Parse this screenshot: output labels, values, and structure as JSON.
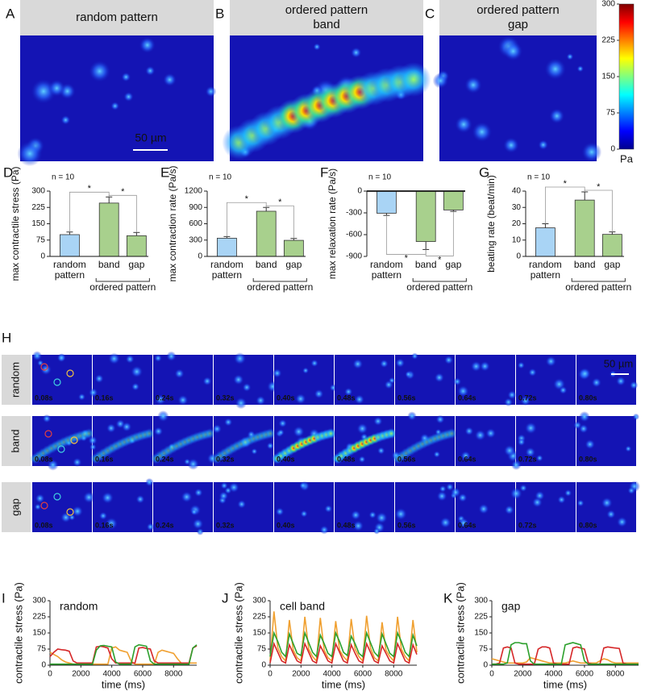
{
  "heatmaps": [
    {
      "label": "A",
      "title_lines": [
        "random pattern"
      ]
    },
    {
      "label": "B",
      "title_lines": [
        "ordered pattern",
        "band"
      ]
    },
    {
      "label": "C",
      "title_lines": [
        "ordered pattern",
        "gap"
      ]
    }
  ],
  "scale_bar": "50 µm",
  "colorbar": {
    "lim": [
      0,
      300
    ],
    "ticks": [
      0,
      75,
      150,
      225,
      300
    ],
    "unit": "Pa"
  },
  "filmstrip": {
    "label": "H",
    "rows": [
      "random",
      "band",
      "gap"
    ],
    "frames": [
      "0.08s",
      "0.16s",
      "0.24s",
      "0.32s",
      "0.40s",
      "0.48s",
      "0.56s",
      "0.64s",
      "0.72s",
      "0.80s"
    ],
    "scale_bar": "50 µm"
  },
  "chart_data": [
    {
      "type": "bar",
      "label": "D",
      "note": "n = 10",
      "ylabel": "max contractile stress (Pa)",
      "categories": [
        "random pattern",
        "band",
        "gap"
      ],
      "group": "ordered pattern",
      "values": [
        100,
        245,
        95
      ],
      "errors": [
        12,
        28,
        15
      ],
      "colors": [
        "#a9d4f5",
        "#a8d08d",
        "#a8d08d"
      ],
      "ylim": [
        0,
        300
      ],
      "yticks": [
        0,
        75,
        150,
        225,
        300
      ],
      "significance": "*"
    },
    {
      "type": "bar",
      "label": "E",
      "note": "n = 10",
      "ylabel": "max contraction rate (Pa/s)",
      "categories": [
        "random pattern",
        "band",
        "gap"
      ],
      "group": "ordered pattern",
      "values": [
        335,
        830,
        295
      ],
      "errors": [
        30,
        70,
        35
      ],
      "colors": [
        "#a9d4f5",
        "#a8d08d",
        "#a8d08d"
      ],
      "ylim": [
        0,
        1200
      ],
      "yticks": [
        0,
        300,
        600,
        900,
        1200
      ],
      "significance": "*"
    },
    {
      "type": "bar",
      "label": "F",
      "note": "n = 10",
      "ylabel": "max relaxation rate (Pa/s)",
      "categories": [
        "random pattern",
        "band",
        "gap"
      ],
      "group": "ordered pattern",
      "values": [
        -305,
        -695,
        -260
      ],
      "errors": [
        30,
        110,
        20
      ],
      "colors": [
        "#a9d4f5",
        "#a8d08d",
        "#a8d08d"
      ],
      "ylim": [
        -900,
        0
      ],
      "yticks": [
        0,
        -300,
        -600,
        -900
      ],
      "significance": "*"
    },
    {
      "type": "bar",
      "label": "G",
      "note": "n = 10",
      "ylabel": "beating rate (beat/min)",
      "categories": [
        "random pattern",
        "band",
        "gap"
      ],
      "group": "ordered pattern",
      "values": [
        17.5,
        34.5,
        13.5
      ],
      "errors": [
        2.5,
        5,
        1.5
      ],
      "colors": [
        "#a9d4f5",
        "#a8d08d",
        "#a8d08d"
      ],
      "ylim": [
        0,
        40
      ],
      "yticks": [
        0,
        10,
        20,
        30,
        40
      ],
      "significance": "*"
    },
    {
      "type": "line",
      "label": "I",
      "title": "random",
      "ylabel": "contractile stress (Pa)",
      "xlabel": "time (ms)",
      "xlim": [
        0,
        9500
      ],
      "xticks": [
        0,
        2000,
        4000,
        6000,
        8000
      ],
      "ylim": [
        0,
        300
      ],
      "yticks": [
        0,
        75,
        150,
        225,
        300
      ],
      "x": [
        0,
        250,
        500,
        750,
        1000,
        1250,
        1500,
        1750,
        2000,
        2250,
        2500,
        2750,
        3000,
        3250,
        3500,
        3750,
        4000,
        4250,
        4500,
        4750,
        5000,
        5250,
        5500,
        5750,
        6000,
        6250,
        6500,
        6750,
        7000,
        7250,
        7500,
        7750,
        8000,
        8250,
        8500,
        8750,
        9000,
        9250,
        9500
      ],
      "series": [
        {
          "color": "#f0a030",
          "values": [
            60,
            50,
            40,
            25,
            15,
            10,
            5,
            5,
            5,
            5,
            5,
            5,
            5,
            5,
            5,
            5,
            80,
            85,
            70,
            65,
            60,
            20,
            5,
            5,
            5,
            5,
            5,
            5,
            60,
            70,
            65,
            60,
            55,
            30,
            10,
            10,
            10,
            10,
            10
          ]
        },
        {
          "color": "#d62728",
          "values": [
            40,
            60,
            75,
            72,
            70,
            65,
            20,
            10,
            10,
            10,
            10,
            10,
            85,
            88,
            85,
            80,
            30,
            10,
            10,
            10,
            10,
            10,
            10,
            80,
            82,
            78,
            75,
            20,
            10,
            10,
            10,
            10,
            10,
            10,
            10,
            10,
            10,
            80,
            90
          ]
        },
        {
          "color": "#2ca02c",
          "values": [
            5,
            5,
            5,
            5,
            5,
            5,
            5,
            5,
            5,
            5,
            5,
            5,
            70,
            90,
            92,
            88,
            85,
            15,
            5,
            5,
            5,
            5,
            85,
            95,
            92,
            88,
            20,
            5,
            5,
            5,
            5,
            5,
            5,
            5,
            5,
            5,
            5,
            80,
            95
          ]
        }
      ]
    },
    {
      "type": "line",
      "label": "J",
      "title": "cell band",
      "ylabel": "contractile stress (Pa)",
      "xlabel": "time (ms)",
      "xlim": [
        0,
        9500
      ],
      "xticks": [
        0,
        2000,
        4000,
        6000,
        8000
      ],
      "ylim": [
        0,
        300
      ],
      "yticks": [
        0,
        75,
        150,
        225,
        300
      ],
      "x": [
        0,
        250,
        500,
        750,
        1000,
        1250,
        1500,
        1750,
        2000,
        2250,
        2500,
        2750,
        3000,
        3250,
        3500,
        3750,
        4000,
        4250,
        4500,
        4750,
        5000,
        5250,
        5500,
        5750,
        6000,
        6250,
        6500,
        6750,
        7000,
        7250,
        7500,
        7750,
        8000,
        8250,
        8500,
        8750,
        9000,
        9250,
        9500
      ],
      "series": [
        {
          "color": "#f0a030",
          "values": [
            20,
            250,
            80,
            40,
            20,
            210,
            70,
            35,
            20,
            225,
            75,
            40,
            20,
            220,
            70,
            35,
            20,
            205,
            70,
            40,
            20,
            215,
            75,
            40,
            20,
            230,
            80,
            35,
            20,
            200,
            70,
            40,
            20,
            225,
            75,
            40,
            20,
            210,
            60
          ]
        },
        {
          "color": "#2ca02c",
          "values": [
            40,
            150,
            110,
            60,
            40,
            145,
            100,
            55,
            45,
            150,
            105,
            60,
            40,
            140,
            100,
            55,
            40,
            150,
            110,
            60,
            45,
            135,
            100,
            55,
            40,
            150,
            105,
            60,
            40,
            145,
            100,
            55,
            40,
            150,
            110,
            60,
            40,
            140,
            90
          ]
        },
        {
          "color": "#d62728",
          "values": [
            10,
            100,
            60,
            20,
            10,
            95,
            55,
            20,
            10,
            100,
            60,
            20,
            10,
            90,
            55,
            20,
            10,
            100,
            60,
            20,
            10,
            95,
            55,
            20,
            10,
            100,
            60,
            20,
            10,
            90,
            55,
            20,
            10,
            100,
            60,
            20,
            10,
            95,
            50
          ]
        }
      ]
    },
    {
      "type": "line",
      "label": "K",
      "title": "gap",
      "ylabel": "contractile stress (Pa)",
      "xlabel": "time (ms)",
      "xlim": [
        0,
        9500
      ],
      "xticks": [
        0,
        2000,
        4000,
        6000,
        8000
      ],
      "ylim": [
        0,
        300
      ],
      "yticks": [
        0,
        75,
        150,
        225,
        300
      ],
      "x": [
        0,
        250,
        500,
        750,
        1000,
        1250,
        1500,
        1750,
        2000,
        2250,
        2500,
        2750,
        3000,
        3250,
        3500,
        3750,
        4000,
        4250,
        4500,
        4750,
        5000,
        5250,
        5500,
        5750,
        6000,
        6250,
        6500,
        6750,
        7000,
        7250,
        7500,
        7750,
        8000,
        8250,
        8500,
        8750,
        9000,
        9250,
        9500
      ],
      "series": [
        {
          "color": "#f0a030",
          "values": [
            30,
            25,
            20,
            15,
            10,
            10,
            10,
            10,
            10,
            15,
            35,
            30,
            25,
            20,
            15,
            10,
            10,
            10,
            10,
            10,
            15,
            20,
            15,
            10,
            10,
            10,
            10,
            10,
            20,
            30,
            25,
            15,
            10,
            10,
            10,
            10,
            10,
            10,
            10
          ]
        },
        {
          "color": "#d62728",
          "values": [
            5,
            5,
            10,
            80,
            85,
            80,
            10,
            5,
            5,
            5,
            5,
            5,
            75,
            85,
            85,
            80,
            10,
            5,
            5,
            5,
            5,
            80,
            85,
            80,
            75,
            10,
            5,
            5,
            5,
            80,
            85,
            82,
            80,
            78,
            10,
            5,
            5,
            5,
            5
          ]
        },
        {
          "color": "#2ca02c",
          "values": [
            5,
            5,
            5,
            5,
            10,
            95,
            105,
            105,
            100,
            100,
            20,
            5,
            5,
            5,
            5,
            5,
            5,
            5,
            5,
            95,
            100,
            105,
            100,
            95,
            20,
            5,
            5,
            5,
            5,
            5,
            5,
            5,
            5,
            5,
            5,
            5,
            5,
            5,
            5
          ]
        }
      ]
    }
  ]
}
